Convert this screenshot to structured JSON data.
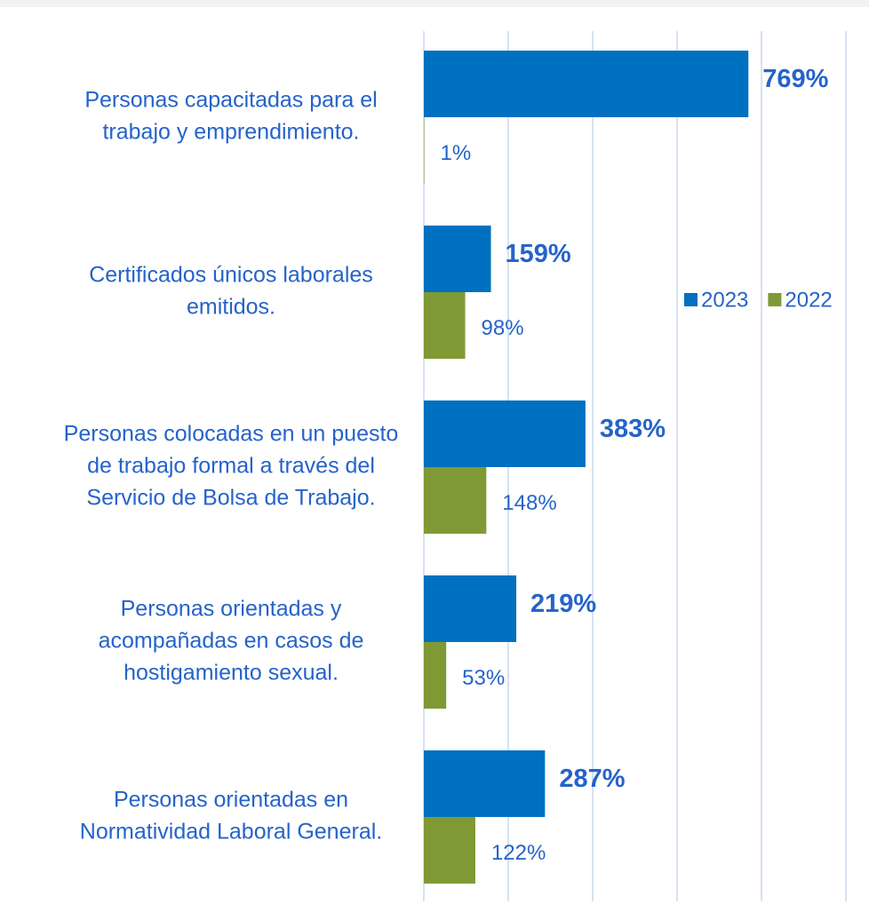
{
  "chart_data": {
    "type": "bar",
    "orientation": "horizontal",
    "categories": [
      [
        "Personas capacitadas para el",
        "trabajo y emprendimiento."
      ],
      [
        "Certificados únicos laborales",
        "emitidos."
      ],
      [
        "Personas colocadas en un puesto",
        "de trabajo formal a través del",
        "Servicio de Bolsa de Trabajo."
      ],
      [
        "Personas orientadas y",
        "acompañadas en casos de",
        "hostigamiento sexual."
      ],
      [
        "Personas orientadas en",
        "Normatividad Laboral General."
      ]
    ],
    "series": [
      {
        "name": "2023",
        "color": "#0070c0",
        "values": [
          769,
          159,
          383,
          219,
          287
        ],
        "value_labels": [
          "769%",
          "159%",
          "383%",
          "219%",
          "287%"
        ]
      },
      {
        "name": "2022",
        "color": "#7f9a34",
        "values": [
          1,
          98,
          148,
          53,
          122
        ],
        "value_labels": [
          "1%",
          "98%",
          "148%",
          "53%",
          "122%"
        ]
      }
    ],
    "xlim": [
      0,
      1000
    ],
    "xticks": [
      0,
      200,
      400,
      600,
      800,
      1000
    ],
    "grid": true,
    "legend": "right"
  }
}
